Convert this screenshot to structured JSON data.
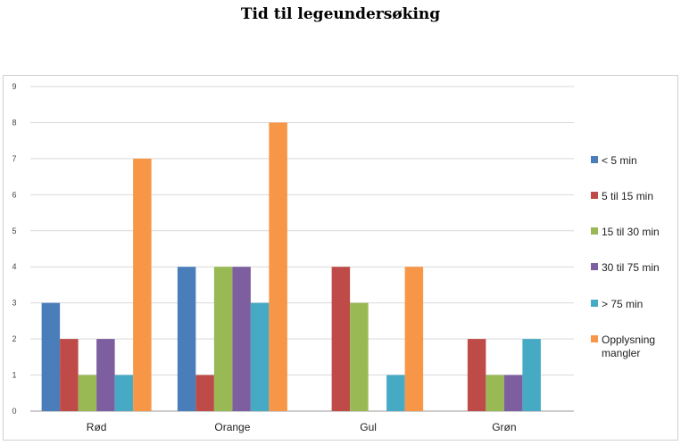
{
  "title": "Tid til legeundersøking",
  "chart_data": {
    "type": "bar",
    "title": "Tid til legeundersøking",
    "xlabel": "",
    "ylabel": "",
    "ylim": [
      0,
      9
    ],
    "yticks": [
      0,
      1,
      2,
      3,
      4,
      5,
      6,
      7,
      8,
      9
    ],
    "grid": true,
    "legend_position": "right",
    "categories": [
      "Rød",
      "Orange",
      "Gul",
      "Grøn"
    ],
    "series": [
      {
        "name": "< 5 min",
        "color": "#4a7ebb",
        "values": [
          3,
          4,
          0,
          0
        ]
      },
      {
        "name": "5 til 15 min",
        "color": "#be4b48",
        "values": [
          2,
          1,
          4,
          2
        ]
      },
      {
        "name": "15 til 30 min",
        "color": "#98b954",
        "values": [
          1,
          4,
          3,
          1
        ]
      },
      {
        "name": "30 til 75 min",
        "color": "#7d5fa0",
        "values": [
          2,
          4,
          0,
          1
        ]
      },
      {
        "name": "> 75 min",
        "color": "#46aac5",
        "values": [
          1,
          3,
          1,
          2
        ]
      },
      {
        "name": "Opplysning mangler",
        "color": "#f79646",
        "values": [
          7,
          8,
          4,
          0
        ]
      }
    ]
  }
}
